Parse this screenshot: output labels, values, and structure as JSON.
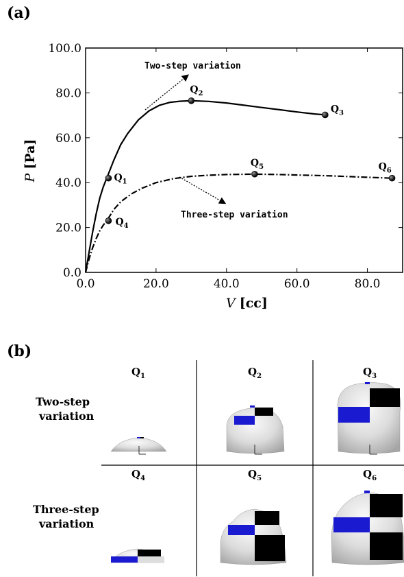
{
  "panel_a_label": "(a)",
  "panel_b_label": "(b)",
  "chart_data": {
    "type": "line",
    "xlabel_var": "V",
    "xlabel_unit": "[cc]",
    "ylabel_var": "P",
    "ylabel_unit": "[Pa]",
    "xlim": [
      0,
      90
    ],
    "ylim": [
      0,
      100
    ],
    "xticks": [
      "0.0",
      "20.0",
      "40.0",
      "60.0",
      "80.0"
    ],
    "xtick_values": [
      0,
      20,
      40,
      60,
      80
    ],
    "yticks": [
      "0.0",
      "20.0",
      "40.0",
      "60.0",
      "80.0",
      "100.0"
    ],
    "ytick_values": [
      0,
      20,
      40,
      60,
      80,
      100
    ],
    "series": [
      {
        "name": "Two-step variation",
        "style": "solid",
        "x": [
          0,
          1,
          2,
          3,
          4,
          5,
          6,
          8,
          10,
          12,
          15,
          18,
          21,
          24,
          27,
          30,
          35,
          40,
          45,
          50,
          55,
          60,
          65,
          68
        ],
        "y": [
          0,
          9,
          18,
          26,
          33,
          38,
          42,
          50,
          57,
          62,
          68,
          72,
          74.5,
          75.8,
          76.3,
          76.5,
          76.2,
          75.5,
          74.5,
          73.5,
          72.5,
          71.5,
          70.6,
          70.2
        ]
      },
      {
        "name": "Three-step variation",
        "style": "dashdot",
        "x": [
          0,
          1,
          2,
          3,
          4,
          5,
          6,
          8,
          10,
          13,
          16,
          20,
          25,
          30,
          35,
          40,
          48,
          55,
          60,
          65,
          70,
          75,
          80,
          87
        ],
        "y": [
          0,
          6,
          11,
          15,
          18.5,
          21,
          23,
          28,
          31.5,
          35,
          37.5,
          40,
          41.8,
          42.8,
          43.3,
          43.6,
          43.8,
          43.6,
          43.4,
          43.2,
          43,
          42.7,
          42.4,
          42
        ]
      }
    ],
    "points": [
      {
        "label": "Q",
        "sub": "1",
        "x": 6.5,
        "y": 42
      },
      {
        "label": "Q",
        "sub": "2",
        "x": 30,
        "y": 76.5
      },
      {
        "label": "Q",
        "sub": "3",
        "x": 68,
        "y": 70.2
      },
      {
        "label": "Q",
        "sub": "4",
        "x": 6.5,
        "y": 23
      },
      {
        "label": "Q",
        "sub": "5",
        "x": 48,
        "y": 43.8
      },
      {
        "label": "Q",
        "sub": "6",
        "x": 87,
        "y": 42
      }
    ],
    "annotations": [
      {
        "text": "Two-step variation"
      },
      {
        "text": "Three-step variation"
      }
    ]
  },
  "grid": {
    "row_labels": [
      {
        "line1": "Two-step",
        "line2": "variation"
      },
      {
        "line1": "Three-step",
        "line2": "variation"
      }
    ],
    "cells": [
      {
        "label": "Q",
        "sub": "1"
      },
      {
        "label": "Q",
        "sub": "2"
      },
      {
        "label": "Q",
        "sub": "3"
      },
      {
        "label": "Q",
        "sub": "4"
      },
      {
        "label": "Q",
        "sub": "5"
      },
      {
        "label": "Q",
        "sub": "6"
      }
    ]
  },
  "colors": {
    "blue_patch": "#1a1ad0",
    "black_patch": "#000000",
    "shell_light": "#f2f2f2",
    "shell_dark": "#a8a8a8"
  }
}
